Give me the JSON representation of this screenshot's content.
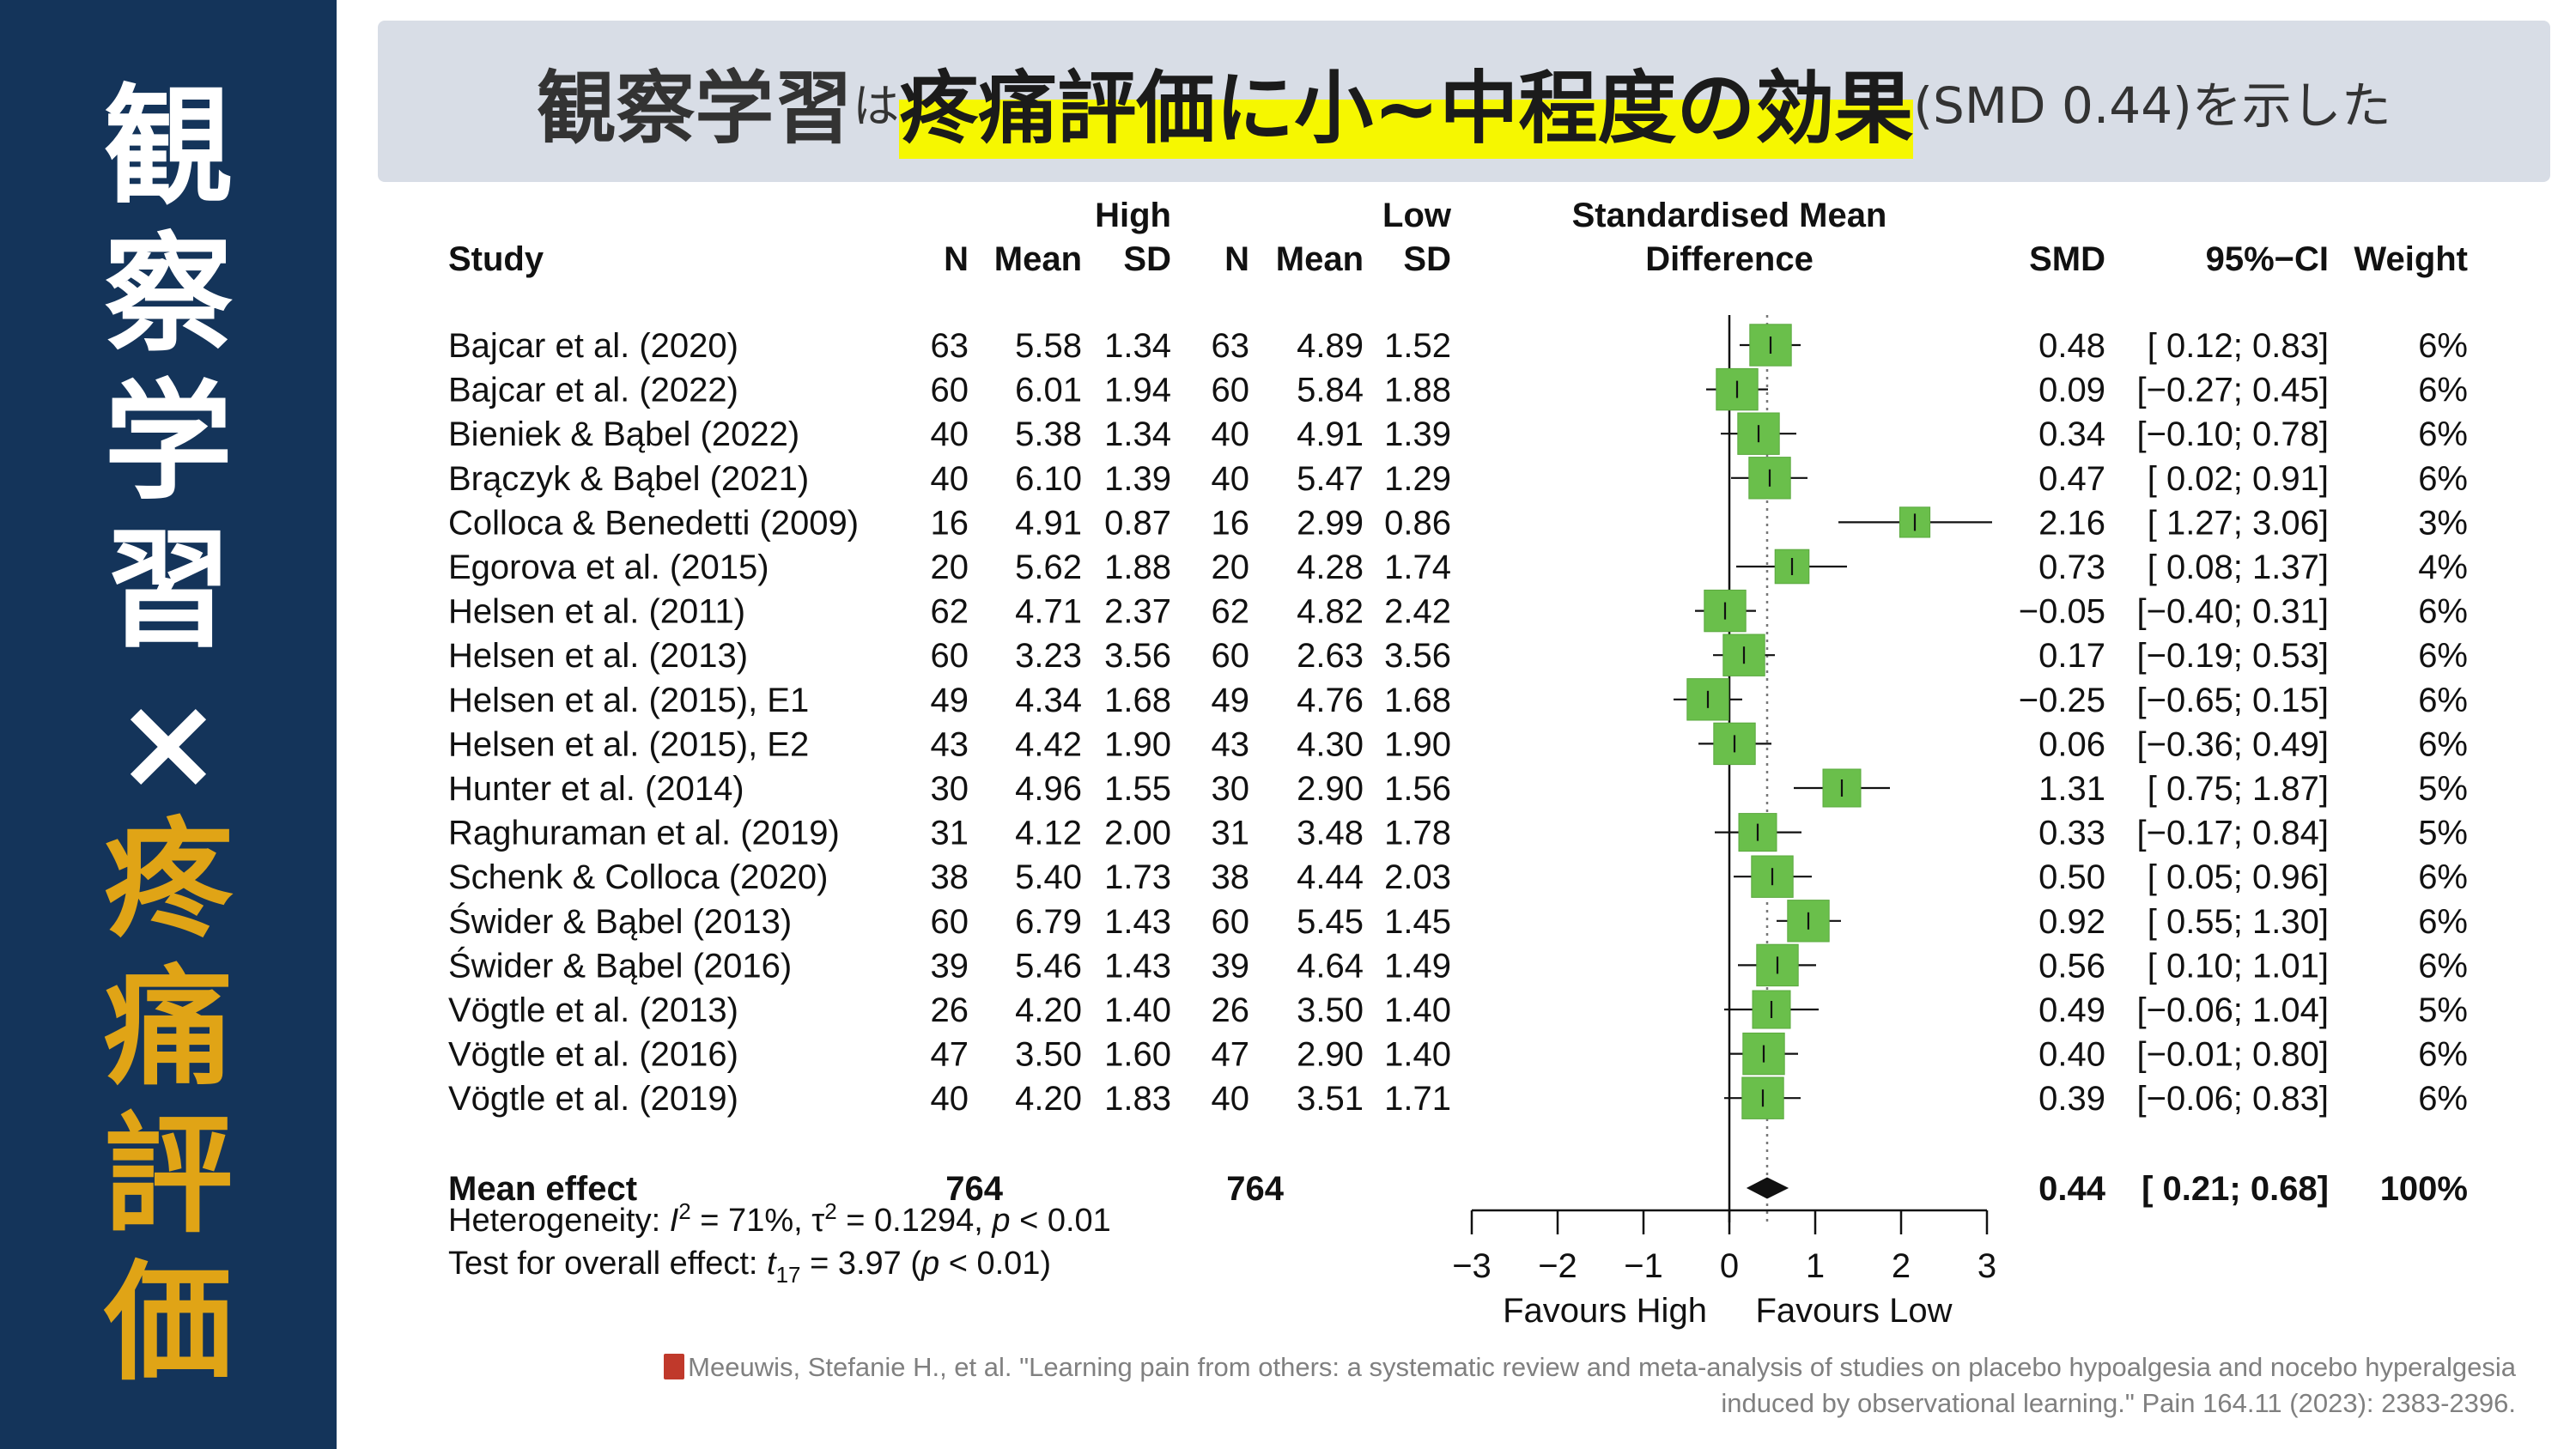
{
  "sidebar": {
    "top_chars": [
      "観",
      "察",
      "学",
      "習"
    ],
    "cross": "×",
    "bottom_chars": [
      "疼",
      "痛",
      "評",
      "価"
    ]
  },
  "banner": {
    "part1": "観察学習",
    "part2": "は",
    "part3": "疼痛評価に小~中程度の効果",
    "part4": "(SMD 0.44)を示した"
  },
  "chart_data": {
    "type": "forest",
    "headers": {
      "study": "Study",
      "group_high": "High",
      "group_low": "Low",
      "n": "N",
      "mean": "Mean",
      "sd": "SD",
      "plot_line1": "Standardised Mean",
      "plot_line2": "Difference",
      "smd": "SMD",
      "ci": "95%−CI",
      "weight": "Weight"
    },
    "studies": [
      {
        "study": "Bajcar et al. (2020)",
        "n_high": "63",
        "mean_high": "5.58",
        "sd_high": "1.34",
        "n_low": "63",
        "mean_low": "4.89",
        "sd_low": "1.52",
        "smd": 0.48,
        "ci_low": 0.12,
        "ci_high": 0.83,
        "smd_text": "0.48",
        "ci_text": "[ 0.12; 0.83]",
        "weight": "6%"
      },
      {
        "study": "Bajcar et al. (2022)",
        "n_high": "60",
        "mean_high": "6.01",
        "sd_high": "1.94",
        "n_low": "60",
        "mean_low": "5.84",
        "sd_low": "1.88",
        "smd": 0.09,
        "ci_low": -0.27,
        "ci_high": 0.45,
        "smd_text": "0.09",
        "ci_text": "[−0.27; 0.45]",
        "weight": "6%"
      },
      {
        "study": "Bieniek & Bąbel (2022)",
        "n_high": "40",
        "mean_high": "5.38",
        "sd_high": "1.34",
        "n_low": "40",
        "mean_low": "4.91",
        "sd_low": "1.39",
        "smd": 0.34,
        "ci_low": -0.1,
        "ci_high": 0.78,
        "smd_text": "0.34",
        "ci_text": "[−0.10; 0.78]",
        "weight": "6%"
      },
      {
        "study": "Brączyk & Bąbel (2021)",
        "n_high": "40",
        "mean_high": "6.10",
        "sd_high": "1.39",
        "n_low": "40",
        "mean_low": "5.47",
        "sd_low": "1.29",
        "smd": 0.47,
        "ci_low": 0.02,
        "ci_high": 0.91,
        "smd_text": "0.47",
        "ci_text": "[ 0.02; 0.91]",
        "weight": "6%"
      },
      {
        "study": "Colloca & Benedetti (2009)",
        "n_high": "16",
        "mean_high": "4.91",
        "sd_high": "0.87",
        "n_low": "16",
        "mean_low": "2.99",
        "sd_low": "0.86",
        "smd": 2.16,
        "ci_low": 1.27,
        "ci_high": 3.06,
        "smd_text": "2.16",
        "ci_text": "[ 1.27; 3.06]",
        "weight": "3%"
      },
      {
        "study": "Egorova et al. (2015)",
        "n_high": "20",
        "mean_high": "5.62",
        "sd_high": "1.88",
        "n_low": "20",
        "mean_low": "4.28",
        "sd_low": "1.74",
        "smd": 0.73,
        "ci_low": 0.08,
        "ci_high": 1.37,
        "smd_text": "0.73",
        "ci_text": "[ 0.08; 1.37]",
        "weight": "4%"
      },
      {
        "study": "Helsen et al. (2011)",
        "n_high": "62",
        "mean_high": "4.71",
        "sd_high": "2.37",
        "n_low": "62",
        "mean_low": "4.82",
        "sd_low": "2.42",
        "smd": -0.05,
        "ci_low": -0.4,
        "ci_high": 0.31,
        "smd_text": "−0.05",
        "ci_text": "[−0.40; 0.31]",
        "weight": "6%"
      },
      {
        "study": "Helsen et al. (2013)",
        "n_high": "60",
        "mean_high": "3.23",
        "sd_high": "3.56",
        "n_low": "60",
        "mean_low": "2.63",
        "sd_low": "3.56",
        "smd": 0.17,
        "ci_low": -0.19,
        "ci_high": 0.53,
        "smd_text": "0.17",
        "ci_text": "[−0.19; 0.53]",
        "weight": "6%"
      },
      {
        "study": "Helsen et al. (2015), E1",
        "n_high": "49",
        "mean_high": "4.34",
        "sd_high": "1.68",
        "n_low": "49",
        "mean_low": "4.76",
        "sd_low": "1.68",
        "smd": -0.25,
        "ci_low": -0.65,
        "ci_high": 0.15,
        "smd_text": "−0.25",
        "ci_text": "[−0.65; 0.15]",
        "weight": "6%"
      },
      {
        "study": "Helsen et al. (2015), E2",
        "n_high": "43",
        "mean_high": "4.42",
        "sd_high": "1.90",
        "n_low": "43",
        "mean_low": "4.30",
        "sd_low": "1.90",
        "smd": 0.06,
        "ci_low": -0.36,
        "ci_high": 0.49,
        "smd_text": "0.06",
        "ci_text": "[−0.36; 0.49]",
        "weight": "6%"
      },
      {
        "study": "Hunter et al. (2014)",
        "n_high": "30",
        "mean_high": "4.96",
        "sd_high": "1.55",
        "n_low": "30",
        "mean_low": "2.90",
        "sd_low": "1.56",
        "smd": 1.31,
        "ci_low": 0.75,
        "ci_high": 1.87,
        "smd_text": "1.31",
        "ci_text": "[ 0.75; 1.87]",
        "weight": "5%"
      },
      {
        "study": "Raghuraman et al. (2019)",
        "n_high": "31",
        "mean_high": "4.12",
        "sd_high": "2.00",
        "n_low": "31",
        "mean_low": "3.48",
        "sd_low": "1.78",
        "smd": 0.33,
        "ci_low": -0.17,
        "ci_high": 0.84,
        "smd_text": "0.33",
        "ci_text": "[−0.17; 0.84]",
        "weight": "5%"
      },
      {
        "study": "Schenk & Colloca (2020)",
        "n_high": "38",
        "mean_high": "5.40",
        "sd_high": "1.73",
        "n_low": "38",
        "mean_low": "4.44",
        "sd_low": "2.03",
        "smd": 0.5,
        "ci_low": 0.05,
        "ci_high": 0.96,
        "smd_text": "0.50",
        "ci_text": "[ 0.05; 0.96]",
        "weight": "6%"
      },
      {
        "study": "Świder & Bąbel (2013)",
        "n_high": "60",
        "mean_high": "6.79",
        "sd_high": "1.43",
        "n_low": "60",
        "mean_low": "5.45",
        "sd_low": "1.45",
        "smd": 0.92,
        "ci_low": 0.55,
        "ci_high": 1.3,
        "smd_text": "0.92",
        "ci_text": "[ 0.55; 1.30]",
        "weight": "6%"
      },
      {
        "study": "Świder & Bąbel (2016)",
        "n_high": "39",
        "mean_high": "5.46",
        "sd_high": "1.43",
        "n_low": "39",
        "mean_low": "4.64",
        "sd_low": "1.49",
        "smd": 0.56,
        "ci_low": 0.1,
        "ci_high": 1.01,
        "smd_text": "0.56",
        "ci_text": "[ 0.10; 1.01]",
        "weight": "6%"
      },
      {
        "study": "Vögtle et al. (2013)",
        "n_high": "26",
        "mean_high": "4.20",
        "sd_high": "1.40",
        "n_low": "26",
        "mean_low": "3.50",
        "sd_low": "1.40",
        "smd": 0.49,
        "ci_low": -0.06,
        "ci_high": 1.04,
        "smd_text": "0.49",
        "ci_text": "[−0.06; 1.04]",
        "weight": "5%"
      },
      {
        "study": "Vögtle et al. (2016)",
        "n_high": "47",
        "mean_high": "3.50",
        "sd_high": "1.60",
        "n_low": "47",
        "mean_low": "2.90",
        "sd_low": "1.40",
        "smd": 0.4,
        "ci_low": -0.01,
        "ci_high": 0.8,
        "smd_text": "0.40",
        "ci_text": "[−0.01; 0.80]",
        "weight": "6%"
      },
      {
        "study": "Vögtle et al. (2019)",
        "n_high": "40",
        "mean_high": "4.20",
        "sd_high": "1.83",
        "n_low": "40",
        "mean_low": "3.51",
        "sd_low": "1.71",
        "smd": 0.39,
        "ci_low": -0.06,
        "ci_high": 0.83,
        "smd_text": "0.39",
        "ci_text": "[−0.06; 0.83]",
        "weight": "6%"
      }
    ],
    "summary": {
      "label": "Mean effect",
      "n_high": "764",
      "n_low": "764",
      "smd": 0.44,
      "ci_low": 0.21,
      "ci_high": 0.68,
      "smd_text": "0.44",
      "ci_text": "[ 0.21; 0.68]",
      "weight": "100%"
    },
    "heterogeneity": {
      "prefix": "Heterogeneity: ",
      "i_symbol": "I",
      "i_exp": "2",
      "i_value": " = 71%, τ",
      "tau_exp": "2",
      "tau_value": " = 0.1294, ",
      "p_symbol": "p",
      "p_value": " < 0.01"
    },
    "overall_test": {
      "prefix": "Test for overall effect: ",
      "t_symbol": "t",
      "t_sub": "17",
      "t_value": " = 3.97 (",
      "p_symbol": "p",
      "p_value": " < 0.01)"
    },
    "x_axis": {
      "ticks": [
        -3,
        -2,
        -1,
        0,
        1,
        2,
        3
      ],
      "tick_labels": [
        "−3",
        "−2",
        "−1",
        "0",
        "1",
        "2",
        "3"
      ],
      "xlim": [
        -3,
        3
      ],
      "favours_left": "Favours High",
      "favours_right": "Favours Low"
    },
    "colors": {
      "square": "#6abf4b",
      "square_edge": "#5aa83e",
      "diamond": "#111111",
      "reference_line": "#777777"
    }
  },
  "citation": {
    "line1": "Meeuwis, Stefanie H., et al. \"Learning pain from others: a systematic review and meta-analysis of studies on placebo hypoalgesia and nocebo hyperalgesia",
    "line2": "induced by observational learning.\" Pain 164.11 (2023): 2383-2396."
  },
  "icons": {
    "citation_icon": "book-icon"
  }
}
